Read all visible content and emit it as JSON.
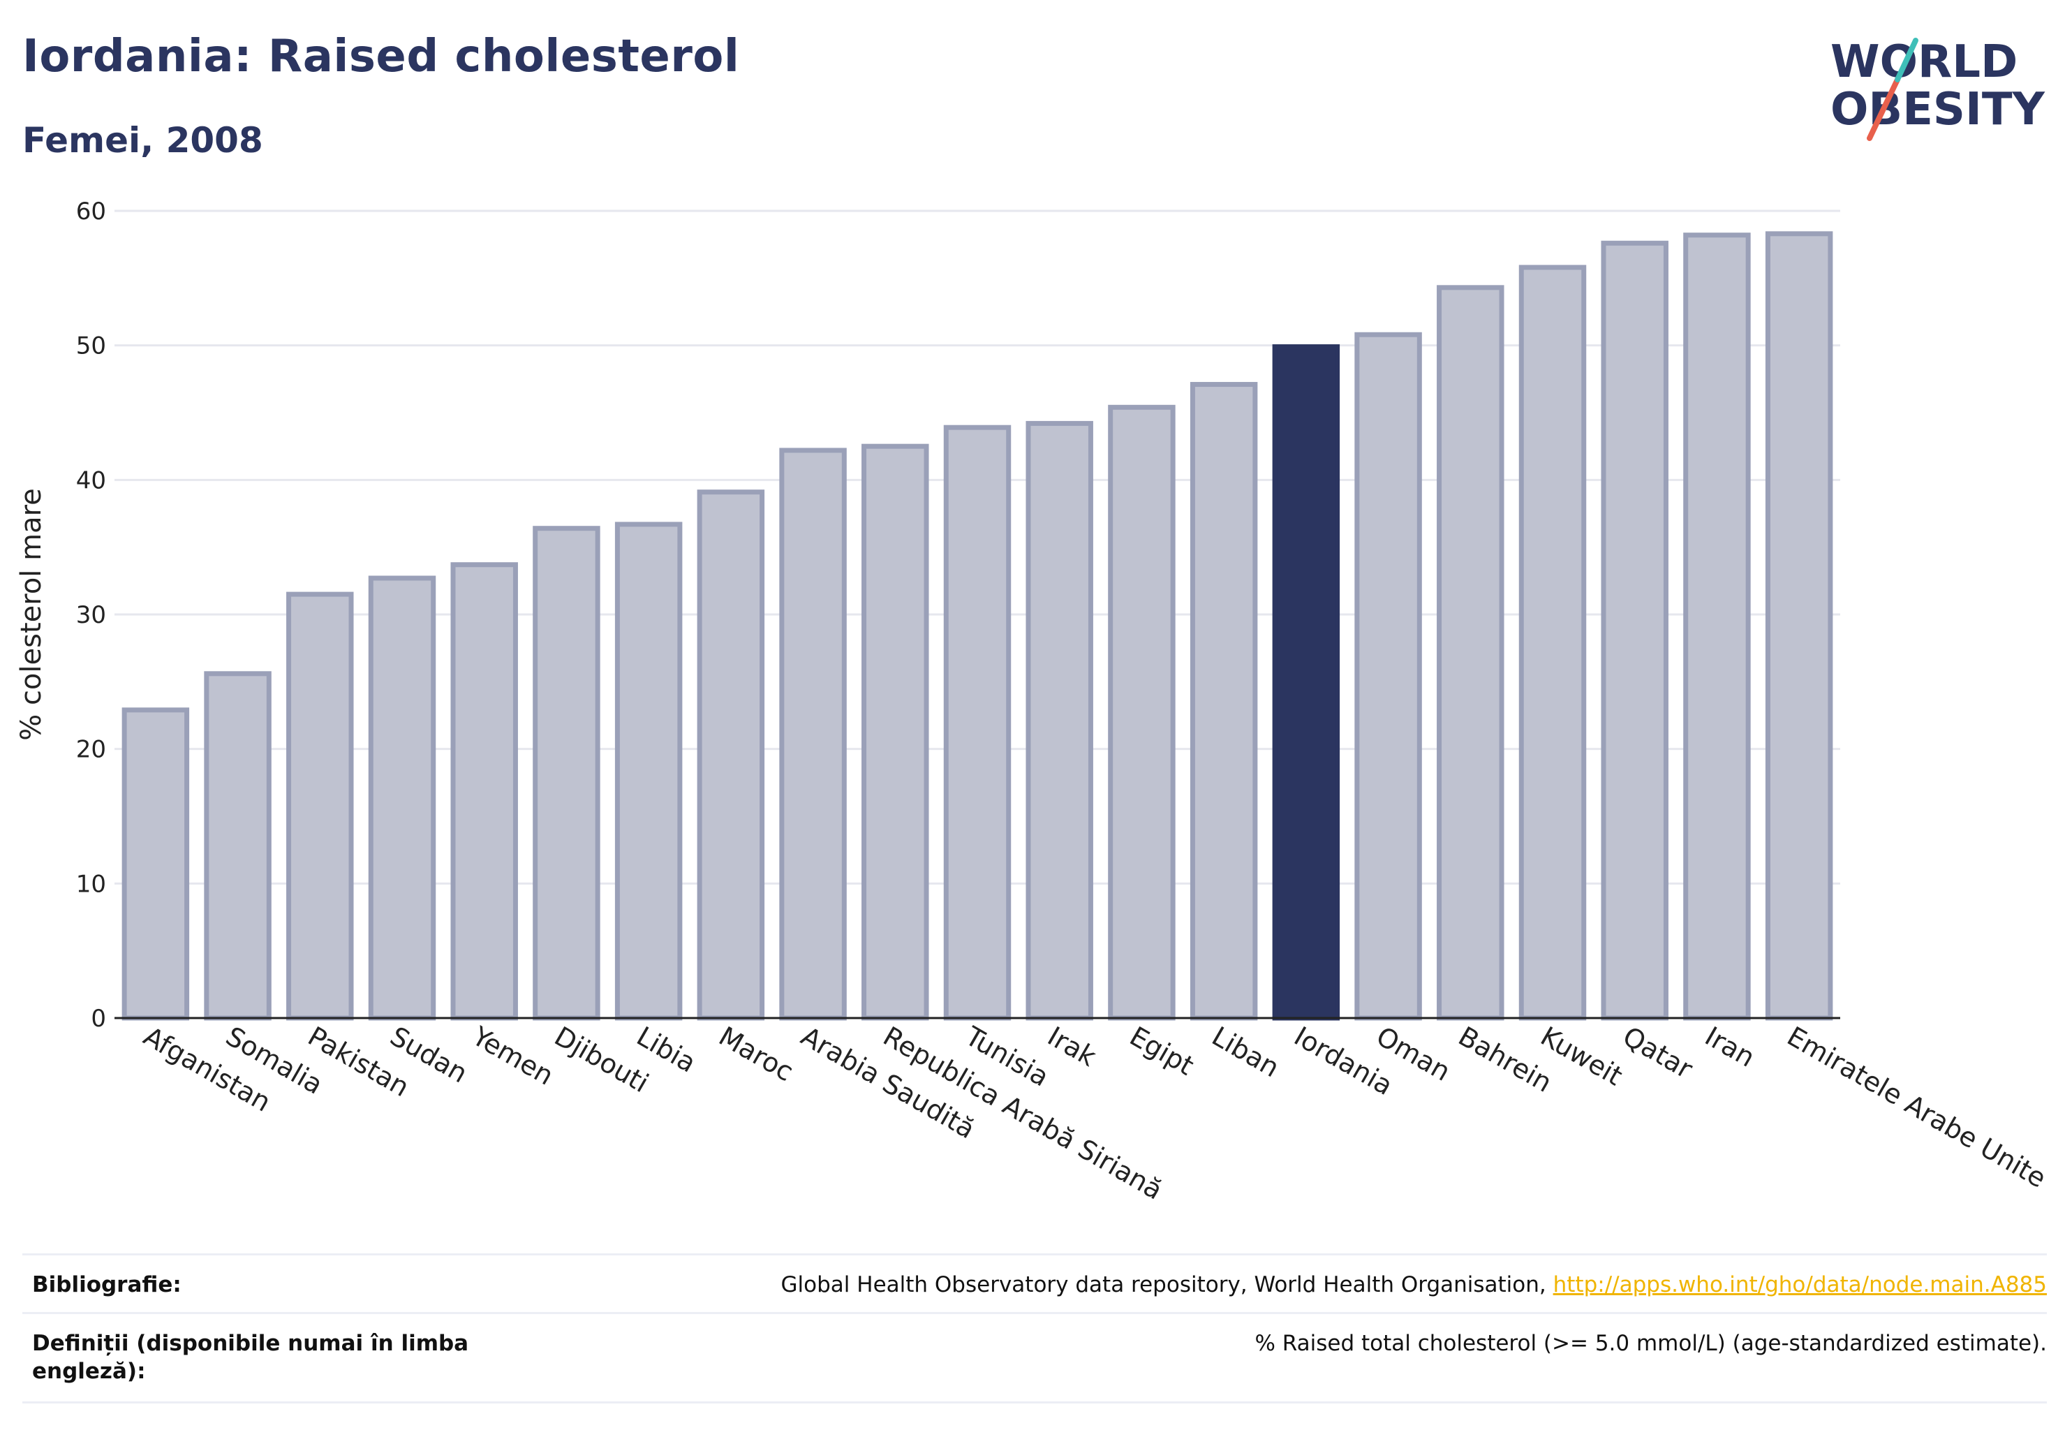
{
  "header": {
    "title": "Iordania: Raised cholesterol",
    "subtitle": "Femei, 2008"
  },
  "logo": {
    "line1": "WORLD",
    "line2": "OBESITY"
  },
  "chart_data": {
    "type": "bar",
    "ylabel": "% colesterol mare",
    "xlabel": "",
    "ylim": [
      0,
      60
    ],
    "yticks": [
      0,
      10,
      20,
      30,
      40,
      50,
      60
    ],
    "grid": true,
    "highlight": "Iordania",
    "categories": [
      "Afganistan",
      "Somalia",
      "Pakistan",
      "Sudan",
      "Yemen",
      "Djibouti",
      "Libia",
      "Maroc",
      "Arabia Saudită",
      "Republica Arabă Siriană",
      "Tunisia",
      "Irak",
      "Egipt",
      "Liban",
      "Iordania",
      "Oman",
      "Bahrein",
      "Kuweit",
      "Qatar",
      "Iran",
      "Emiratele Arabe Unite"
    ],
    "values": [
      22.9,
      25.6,
      31.5,
      32.7,
      33.7,
      36.4,
      36.7,
      39.1,
      42.2,
      42.5,
      43.9,
      44.2,
      45.4,
      47.1,
      49.9,
      50.8,
      54.3,
      55.8,
      57.6,
      58.2,
      58.3
    ]
  },
  "footer": {
    "bibliography_label": "Bibliografie:",
    "bibliography_text": "Global Health Observatory data repository, World Health Organisation, ",
    "bibliography_link": "http://apps.who.int/gho/data/node.main.A885",
    "definitions_label": "Definiții (disponibile numai în limba engleză):",
    "definitions_text": "% Raised total cholesterol (>= 5.0 mmol/L) (age-standardized estimate)."
  },
  "colors": {
    "highlight": "#2b3560",
    "bar_fill": "#bfc2d0",
    "bar_stroke": "#9aa0b8",
    "accent_teal": "#3fbfb8",
    "accent_red": "#e8604c"
  }
}
